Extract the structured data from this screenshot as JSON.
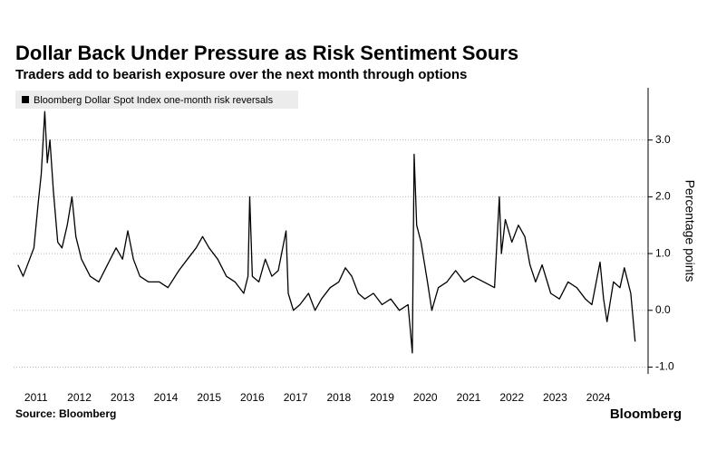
{
  "chart_data": {
    "type": "line",
    "title": "Dollar Back Under Pressure as Risk Sentiment Sours",
    "subtitle": "Traders add to bearish exposure over the next month through options",
    "y_label": "Percentage points",
    "source": "Source: Bloomberg",
    "logo": "Bloomberg",
    "x": [
      2011.08,
      2011.2,
      2011.35,
      2011.45,
      2011.55,
      2011.62,
      2011.7,
      2011.76,
      2011.82,
      2011.9,
      2012.0,
      2012.1,
      2012.22,
      2012.33,
      2012.42,
      2012.55,
      2012.75,
      2012.95,
      2013.15,
      2013.35,
      2013.5,
      2013.62,
      2013.75,
      2013.9,
      2014.1,
      2014.35,
      2014.55,
      2014.8,
      2015.0,
      2015.2,
      2015.35,
      2015.5,
      2015.7,
      2015.9,
      2016.1,
      2016.3,
      2016.4,
      2016.44,
      2016.5,
      2016.65,
      2016.8,
      2016.95,
      2017.1,
      2017.28,
      2017.33,
      2017.45,
      2017.6,
      2017.8,
      2017.95,
      2018.1,
      2018.3,
      2018.5,
      2018.65,
      2018.8,
      2018.95,
      2019.1,
      2019.3,
      2019.5,
      2019.7,
      2019.9,
      2020.1,
      2020.2,
      2020.24,
      2020.3,
      2020.4,
      2020.55,
      2020.65,
      2020.8,
      2021.0,
      2021.2,
      2021.4,
      2021.6,
      2021.85,
      2022.1,
      2022.21,
      2022.26,
      2022.35,
      2022.5,
      2022.65,
      2022.8,
      2022.92,
      2023.05,
      2023.2,
      2023.4,
      2023.6,
      2023.8,
      2024.0,
      2024.2,
      2024.35,
      2024.54,
      2024.62,
      2024.7,
      2024.85,
      2025.0,
      2025.1,
      2025.25,
      2025.35
    ],
    "series": [
      {
        "name": "Bloomberg Dollar Spot Index one-month risk reversals",
        "color": "#000000",
        "values": [
          0.8,
          0.6,
          0.9,
          1.1,
          1.9,
          2.4,
          3.5,
          2.6,
          3.0,
          2.1,
          1.2,
          1.1,
          1.5,
          2.0,
          1.3,
          0.9,
          0.6,
          0.5,
          0.8,
          1.1,
          0.9,
          1.4,
          0.9,
          0.6,
          0.5,
          0.5,
          0.4,
          0.7,
          0.9,
          1.1,
          1.3,
          1.1,
          0.9,
          0.6,
          0.5,
          0.3,
          0.6,
          2.0,
          0.6,
          0.5,
          0.9,
          0.6,
          0.7,
          1.4,
          0.3,
          0.0,
          0.1,
          0.3,
          0.0,
          0.2,
          0.4,
          0.5,
          0.75,
          0.6,
          0.3,
          0.2,
          0.3,
          0.1,
          0.2,
          0.0,
          0.1,
          -0.75,
          2.75,
          1.5,
          1.2,
          0.5,
          0.0,
          0.4,
          0.5,
          0.7,
          0.5,
          0.6,
          0.5,
          0.4,
          2.0,
          1.0,
          1.6,
          1.2,
          1.5,
          1.3,
          0.8,
          0.5,
          0.8,
          0.3,
          0.2,
          0.5,
          0.4,
          0.2,
          0.1,
          0.85,
          0.2,
          -0.2,
          0.5,
          0.4,
          0.75,
          0.3,
          -0.55
        ]
      }
    ],
    "xlim": [
      2010.98,
      2025.65
    ],
    "xticks": [
      {
        "value": 2011.5,
        "label": "2011"
      },
      {
        "value": 2012.5,
        "label": "2012"
      },
      {
        "value": 2013.5,
        "label": "2013"
      },
      {
        "value": 2014.5,
        "label": "2014"
      },
      {
        "value": 2015.5,
        "label": "2015"
      },
      {
        "value": 2016.5,
        "label": "2016"
      },
      {
        "value": 2017.5,
        "label": "2017"
      },
      {
        "value": 2018.5,
        "label": "2018"
      },
      {
        "value": 2019.5,
        "label": "2019"
      },
      {
        "value": 2020.5,
        "label": "2020"
      },
      {
        "value": 2021.5,
        "label": "2021"
      },
      {
        "value": 2022.5,
        "label": "2022"
      },
      {
        "value": 2023.5,
        "label": "2023"
      },
      {
        "value": 2024.5,
        "label": "2024"
      }
    ],
    "ylim": [
      -1.12,
      3.92
    ],
    "yticks": [
      {
        "value": -1,
        "label": "-1.0"
      },
      {
        "value": 0,
        "label": "0.0"
      },
      {
        "value": 1,
        "label": "1.0"
      },
      {
        "value": 2,
        "label": "2.0"
      },
      {
        "value": 3,
        "label": "3.0"
      }
    ],
    "grid": true
  }
}
